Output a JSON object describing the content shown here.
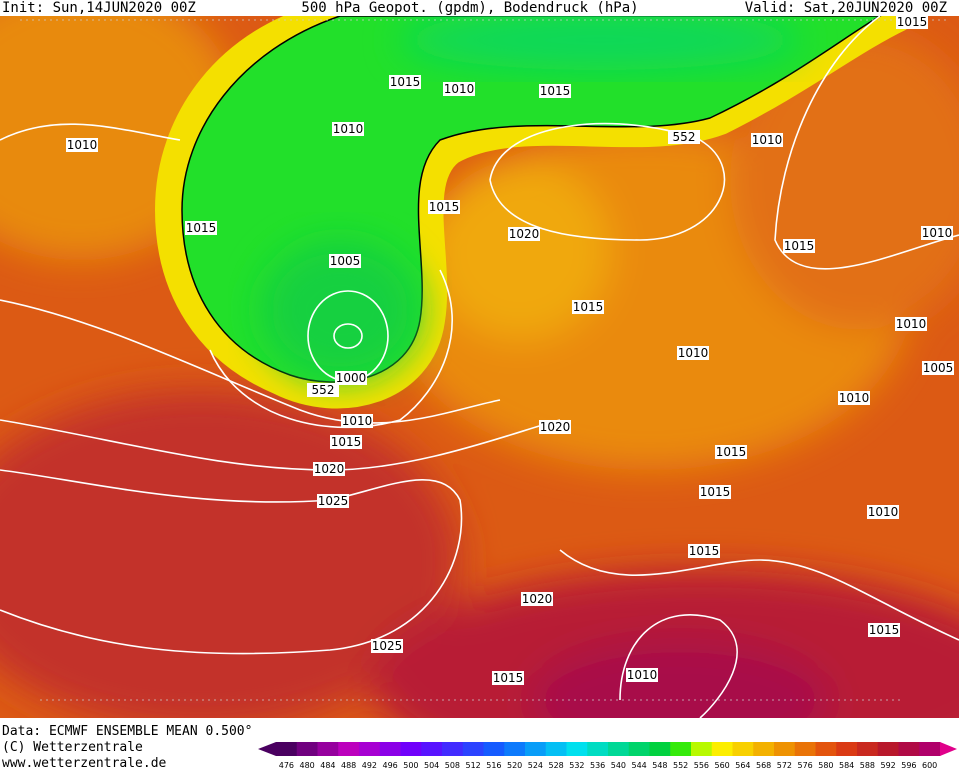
{
  "header": {
    "init": "Init: Sun,14JUN2020 00Z",
    "title": "500 hPa Geopot. (gpdm), Bodendruck (hPa)",
    "valid": "Valid: Sat,20JUN2020 00Z"
  },
  "isobar_labels": [
    "1015",
    "1015",
    "1010",
    "1015",
    "1010",
    "1010",
    "552",
    "1010",
    "1015",
    "1015",
    "1020",
    "1015",
    "1010",
    "1005",
    "1015",
    "1010",
    "1010",
    "1005",
    "1000",
    "552",
    "1010",
    "1010",
    "1020",
    "1015",
    "1015",
    "1020",
    "1015",
    "1025",
    "1010",
    "1015",
    "1020",
    "1015",
    "1025",
    "1010",
    "1015"
  ],
  "footer": {
    "data": "Data: ECMWF ENSEMBLE MEAN 0.500°",
    "copyright": "(C) Wetterzentrale",
    "url": "www.wetterzentrale.de"
  },
  "colorbar": {
    "labels": [
      476,
      480,
      484,
      488,
      492,
      496,
      500,
      504,
      508,
      512,
      516,
      520,
      524,
      528,
      532,
      536,
      540,
      544,
      548,
      552,
      556,
      560,
      564,
      568,
      572,
      576,
      580,
      584,
      588,
      592,
      596,
      600
    ]
  }
}
